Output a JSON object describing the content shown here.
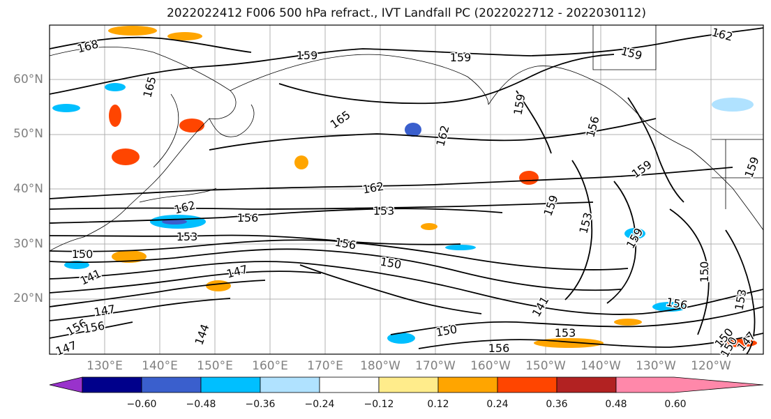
{
  "title": "2022022412 F006 500 hPa refract., IVT Landfall PC (2022022712 - 2022030112)",
  "lat_labels": [
    "60°N",
    "50°N",
    "40°N",
    "30°N",
    "20°N"
  ],
  "lon_labels": [
    "130°E",
    "140°E",
    "150°E",
    "160°E",
    "170°E",
    "180°W",
    "170°W",
    "160°W",
    "150°W",
    "140°W",
    "130°W",
    "120°W"
  ],
  "colorbar": {
    "ticks": [
      "−0.60",
      "−0.48",
      "−0.36",
      "−0.24",
      "−0.12",
      "0.12",
      "0.24",
      "0.36",
      "0.48",
      "0.60"
    ],
    "colors": [
      "#9932cc",
      "#00008b",
      "#3a5fcd",
      "#00bfff",
      "#b0e2ff",
      "#ffffff",
      "#ffec8b",
      "#ffa500",
      "#ff4500",
      "#b22222",
      "#ff88aa"
    ]
  },
  "contour_labels": [
    {
      "text": "168"
    },
    {
      "text": "165"
    },
    {
      "text": "159"
    },
    {
      "text": "159"
    },
    {
      "text": "159"
    },
    {
      "text": "162"
    },
    {
      "text": "165"
    },
    {
      "text": "159"
    },
    {
      "text": "156"
    },
    {
      "text": "159"
    },
    {
      "text": "162"
    },
    {
      "text": "159"
    },
    {
      "text": "162"
    },
    {
      "text": "162"
    },
    {
      "text": "153"
    },
    {
      "text": "156"
    },
    {
      "text": "153"
    },
    {
      "text": "159"
    },
    {
      "text": "153"
    },
    {
      "text": "159"
    },
    {
      "text": "150"
    },
    {
      "text": "156"
    },
    {
      "text": "150"
    },
    {
      "text": "147"
    },
    {
      "text": "150"
    },
    {
      "text": "141"
    },
    {
      "text": "147"
    },
    {
      "text": "147"
    },
    {
      "text": "144"
    },
    {
      "text": "156"
    },
    {
      "text": "153"
    },
    {
      "text": "156"
    },
    {
      "text": "150"
    },
    {
      "text": "153"
    },
    {
      "text": "150"
    },
    {
      "text": "147"
    },
    {
      "text": "150"
    },
    {
      "text": "141"
    },
    {
      "text": "156"
    },
    {
      "text": "156"
    }
  ]
}
